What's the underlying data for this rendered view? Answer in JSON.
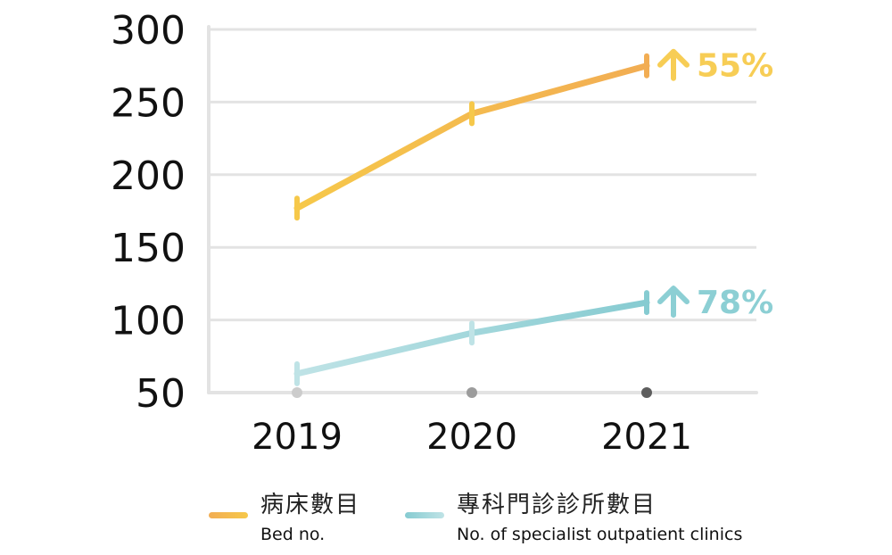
{
  "chart_data": {
    "type": "line",
    "categories": [
      "2019",
      "2020",
      "2021"
    ],
    "ylim": [
      50,
      300
    ],
    "yticks": [
      "300",
      "250",
      "200",
      "150",
      "100",
      "50"
    ],
    "grid": true,
    "legend_position": "bottom",
    "series": [
      {
        "name": "病床數目",
        "name_en": "Bed no.",
        "values": [
          177,
          242,
          275
        ],
        "color": "#f6c84a",
        "color_end": "#f2ad53",
        "change_label": "55%",
        "change_color": "#f7cd55"
      },
      {
        "name": "專科門診診所數目",
        "name_en": "No. of specialist outpatient clinics",
        "values": [
          63,
          91,
          112
        ],
        "color": "#bfe3e6",
        "color_end": "#86cbd1",
        "change_label": "78%",
        "change_color": "#8ccfd4"
      }
    ],
    "x_marker_colors": [
      "#cccccc",
      "#9c9c9c",
      "#5e5e5e"
    ]
  }
}
